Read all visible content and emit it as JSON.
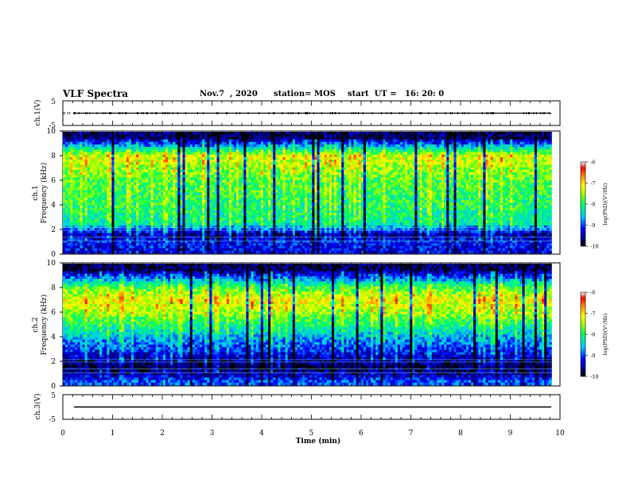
{
  "header": {
    "title": "VLF Spectra",
    "date": "Nov.7  , 2020",
    "station": "station= MOS",
    "start": "start  UT =   16: 20: 0"
  },
  "chart_data": [
    {
      "type": "line",
      "panel": "ch1-waveform",
      "ylabel": "ch.1(V)",
      "ylim": [
        -5,
        5
      ],
      "yticks": [
        5,
        -5
      ],
      "xlim": [
        0,
        10
      ],
      "trace_approx_level": 0,
      "trace_end_min": 9.83
    },
    {
      "type": "heatmap",
      "panel": "ch1-spectrogram",
      "ylabel_channel": "ch.1",
      "ylabel": "Frequency  (kHz)",
      "ylim": [
        0,
        10
      ],
      "yticks": [
        0,
        2,
        4,
        6,
        8,
        10
      ],
      "xlim": [
        0,
        10
      ],
      "data_end_min": 9.83,
      "colorbar": {
        "label": "log(PSD)(V²/Hz)",
        "range": [
          -10,
          -6
        ],
        "ticks": [
          "-6",
          "-7",
          "-8",
          "-9",
          "-10"
        ]
      },
      "approx_profile_logpsd": [
        {
          "f_khz": 0.3,
          "v": -9.3
        },
        {
          "f_khz": 1.0,
          "v": -9.2
        },
        {
          "f_khz": 1.5,
          "v": -9.6
        },
        {
          "f_khz": 2.5,
          "v": -8.2
        },
        {
          "f_khz": 4.0,
          "v": -8.0
        },
        {
          "f_khz": 6.0,
          "v": -7.8
        },
        {
          "f_khz": 8.0,
          "v": -7.3
        },
        {
          "f_khz": 9.5,
          "v": -9.8
        }
      ]
    },
    {
      "type": "heatmap",
      "panel": "ch2-spectrogram",
      "ylabel_channel": "ch.2",
      "ylabel": "Frequency  (kHz)",
      "ylim": [
        0,
        10
      ],
      "yticks": [
        0,
        2,
        4,
        6,
        8,
        10
      ],
      "xlim": [
        0,
        10
      ],
      "data_end_min": 9.83,
      "colorbar": {
        "label": "log(PSD)(V²/Hz)",
        "range": [
          -10,
          -6
        ],
        "ticks": [
          "-6",
          "-7",
          "-8",
          "-9",
          "-10"
        ]
      },
      "approx_profile_logpsd": [
        {
          "f_khz": 0.3,
          "v": -9.0
        },
        {
          "f_khz": 1.0,
          "v": -9.6
        },
        {
          "f_khz": 1.5,
          "v": -9.9
        },
        {
          "f_khz": 2.5,
          "v": -9.3
        },
        {
          "f_khz": 4.0,
          "v": -8.6
        },
        {
          "f_khz": 6.0,
          "v": -7.5
        },
        {
          "f_khz": 7.0,
          "v": -7.2
        },
        {
          "f_khz": 8.0,
          "v": -7.8
        },
        {
          "f_khz": 9.5,
          "v": -9.8
        }
      ]
    },
    {
      "type": "line",
      "panel": "ch3-waveform",
      "ylabel": "ch.3(V)",
      "ylim": [
        -5,
        5
      ],
      "yticks": [
        5,
        -5
      ],
      "xlim": [
        0,
        10
      ],
      "trace_approx_level": 0,
      "trace_end_min": 9.83
    }
  ],
  "xaxis": {
    "label": "Time  (min)",
    "ticks": [
      "0",
      "1",
      "2",
      "3",
      "4",
      "5",
      "6",
      "7",
      "8",
      "9",
      "10"
    ]
  }
}
